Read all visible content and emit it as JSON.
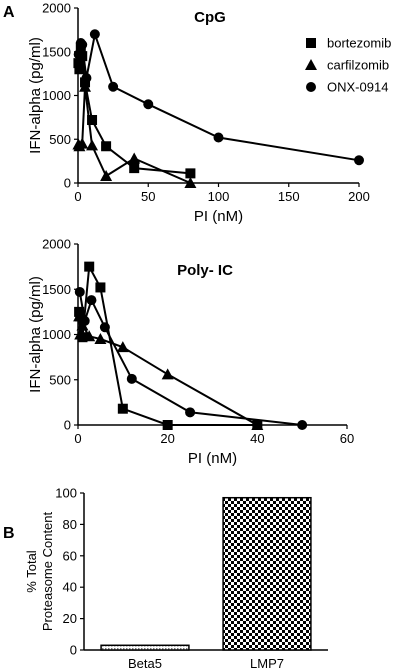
{
  "figure": {
    "panel_a_letter": "A",
    "panel_b_letter": "B"
  },
  "chart_data": [
    {
      "type": "line",
      "title": "CpG",
      "xlabel": "PI (nM)",
      "ylabel": "IFN-alpha (pg/ml)",
      "xlim": [
        0,
        200
      ],
      "ylim": [
        0,
        2000
      ],
      "xticks": [
        "0",
        "50",
        "100",
        "150",
        "200"
      ],
      "yticks": [
        "0",
        "500",
        "1000",
        "1500",
        "2000"
      ],
      "legend_position": "top-right",
      "series": [
        {
          "name": "bortezomib",
          "marker": "square",
          "x": [
            0.3,
            1,
            2,
            3,
            5,
            10,
            20,
            40,
            80
          ],
          "y": [
            1370,
            1300,
            1550,
            1450,
            1150,
            720,
            420,
            170,
            110
          ]
        },
        {
          "name": "carfilzomib",
          "marker": "triangle",
          "x": [
            0.3,
            1,
            3,
            5,
            10,
            20,
            40,
            80
          ],
          "y": [
            440,
            420,
            450,
            1100,
            430,
            80,
            280,
            0
          ]
        },
        {
          "name": "ONX-0914",
          "marker": "circle",
          "x": [
            0.5,
            2,
            3,
            6,
            12,
            25,
            50,
            100,
            200
          ],
          "y": [
            1470,
            1600,
            1580,
            1200,
            1700,
            1100,
            900,
            520,
            260
          ]
        }
      ]
    },
    {
      "type": "line",
      "title": "Poly- IC",
      "xlabel": "PI (nM)",
      "ylabel": "IFN-alpha (pg/ml)",
      "xlim": [
        0,
        60
      ],
      "ylim": [
        0,
        2000
      ],
      "xticks": [
        "0",
        "20",
        "40",
        "60"
      ],
      "yticks": [
        "0",
        "500",
        "1000",
        "1500",
        "2000"
      ],
      "series": [
        {
          "marker": "square",
          "x": [
            0.25,
            0.5,
            1,
            2.5,
            5,
            10,
            20,
            40
          ],
          "y": [
            1250,
            1200,
            970,
            1750,
            1520,
            180,
            0,
            0
          ]
        },
        {
          "marker": "triangle",
          "x": [
            0.25,
            0.5,
            1,
            2.5,
            5,
            10,
            20,
            40
          ],
          "y": [
            1200,
            1000,
            1100,
            980,
            950,
            860,
            560,
            0
          ]
        },
        {
          "marker": "circle",
          "x": [
            0.4,
            1.5,
            3,
            6,
            12,
            25,
            50
          ],
          "y": [
            1470,
            1150,
            1380,
            1080,
            510,
            140,
            0
          ]
        }
      ]
    },
    {
      "type": "bar",
      "categories": [
        "Beta5",
        "LMP7"
      ],
      "values": [
        3,
        97
      ],
      "ylabel": "% Total\nProteasome Content",
      "ylim": [
        0,
        100
      ],
      "yticks": [
        "0",
        "20",
        "40",
        "60",
        "80",
        "100"
      ]
    }
  ]
}
